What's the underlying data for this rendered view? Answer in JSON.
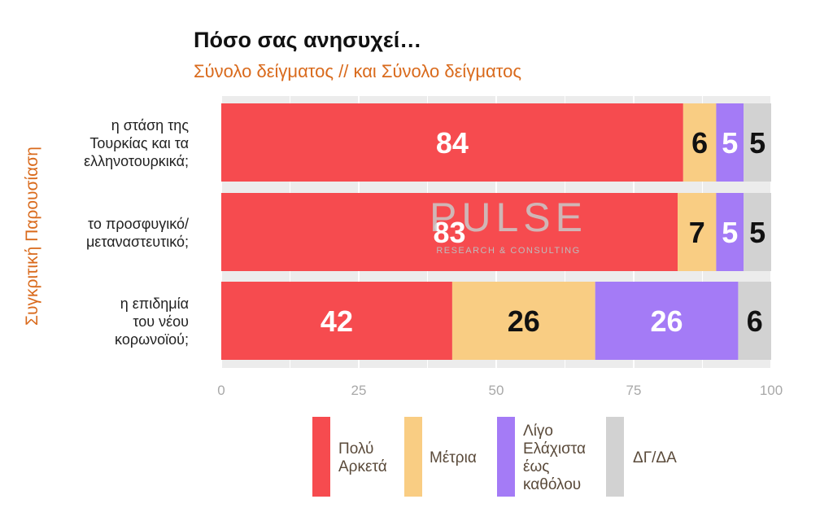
{
  "title": "Πόσο σας ανησυχεί…",
  "subtitle": "Σύνολο δείγματος // και Σύνολο δείγματος",
  "side_label": "Συγκριτική  Παρουσίαση",
  "watermark": {
    "logo_text": "PULSE",
    "tagline": "RESEARCH & CONSULTING"
  },
  "colors": {
    "poly_arketa": "#f64b4f",
    "metria": "#f9cd83",
    "ligo": "#a47bf6",
    "dg_da": "#d2d2d2",
    "accent": "#d96a1c"
  },
  "chart_data": {
    "type": "bar",
    "orientation": "horizontal",
    "stacked": true,
    "categories": [
      [
        "η στάση της",
        "Τουρκίας και τα",
        "ελληνοτουρκικά;"
      ],
      [
        "το προσφυγικό/",
        "μεταναστευτικό;"
      ],
      [
        "η επιδημία",
        "του νέου",
        "κορωνοϊού;"
      ]
    ],
    "series": [
      {
        "name": [
          "Πολύ",
          "Αρκετά"
        ],
        "values": [
          84,
          83,
          42
        ],
        "color": "#f64b4f",
        "label_color": "#ffffff"
      },
      {
        "name": [
          "Μέτρια"
        ],
        "values": [
          6,
          7,
          26
        ],
        "color": "#f9cd83",
        "label_color": "#111111"
      },
      {
        "name": [
          "Λίγο",
          "Ελάχιστα",
          "έως",
          "καθόλου"
        ],
        "values": [
          5,
          5,
          26
        ],
        "color": "#a47bf6",
        "label_color": "#ffffff"
      },
      {
        "name": [
          "ΔΓ/ΔΑ"
        ],
        "values": [
          5,
          5,
          6
        ],
        "color": "#d2d2d2",
        "label_color": "#111111"
      }
    ],
    "xlim": [
      0,
      100
    ],
    "xticks": [
      0,
      25,
      50,
      75,
      100
    ],
    "grid": true,
    "legend_position": "bottom"
  }
}
